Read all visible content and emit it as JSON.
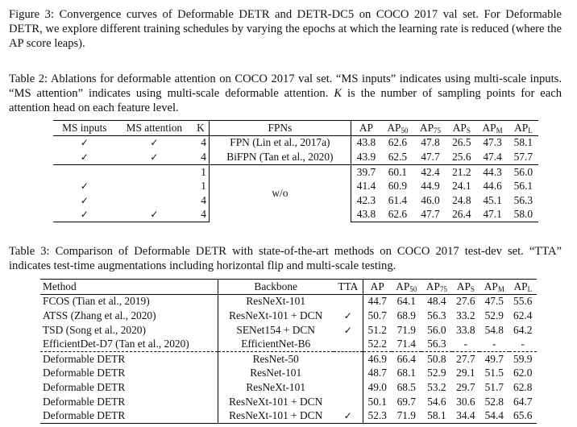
{
  "figure3_caption": "Figure 3: Convergence curves of Deformable DETR and DETR-DC5 on COCO 2017 val set. For Deformable DETR, we explore different training schedules by varying the epochs at which the learning rate is reduced (where the AP score leaps).",
  "table2": {
    "caption_prefix": "Table 2: Ablations for deformable attention on COCO 2017 val set. “MS inputs” indicates using multi-scale inputs. “MS attention” indicates using multi-scale deformable attention. ",
    "caption_k": "K",
    "caption_suffix": " is the number of sampling points for each attention head on each feature level.",
    "headers": {
      "ms_inputs": "MS inputs",
      "ms_attention": "MS attention",
      "k": "K",
      "fpns": "FPNs",
      "ap": "AP",
      "ap50": "AP",
      "ap50_sub": "50",
      "ap75": "AP",
      "ap75_sub": "75",
      "aps": "AP",
      "aps_sub": "S",
      "apm": "AP",
      "apm_sub": "M",
      "apl": "AP",
      "apl_sub": "L"
    },
    "check": "✓",
    "wo_label": "w/o",
    "rows": [
      {
        "ms_inputs": "✓",
        "ms_attention": "✓",
        "k": "4",
        "fpns": "FPN (Lin et al., 2017a)",
        "ap": "43.8",
        "ap50": "62.6",
        "ap75": "47.8",
        "aps": "26.5",
        "apm": "47.3",
        "apl": "58.1"
      },
      {
        "ms_inputs": "✓",
        "ms_attention": "✓",
        "k": "4",
        "fpns": "BiFPN (Tan et al., 2020)",
        "ap": "43.9",
        "ap50": "62.5",
        "ap75": "47.7",
        "aps": "25.6",
        "apm": "47.4",
        "apl": "57.7"
      },
      {
        "ms_inputs": "",
        "ms_attention": "",
        "k": "1",
        "ap": "39.7",
        "ap50": "60.1",
        "ap75": "42.4",
        "aps": "21.2",
        "apm": "44.3",
        "apl": "56.0"
      },
      {
        "ms_inputs": "✓",
        "ms_attention": "",
        "k": "1",
        "ap": "41.4",
        "ap50": "60.9",
        "ap75": "44.9",
        "aps": "24.1",
        "apm": "44.6",
        "apl": "56.1"
      },
      {
        "ms_inputs": "✓",
        "ms_attention": "",
        "k": "4",
        "ap": "42.3",
        "ap50": "61.4",
        "ap75": "46.0",
        "aps": "24.8",
        "apm": "45.1",
        "apl": "56.3"
      },
      {
        "ms_inputs": "✓",
        "ms_attention": "✓",
        "k": "4",
        "ap": "43.8",
        "ap50": "62.6",
        "ap75": "47.7",
        "aps": "26.4",
        "apm": "47.1",
        "apl": "58.0"
      }
    ]
  },
  "table3": {
    "caption": "Table 3: Comparison of Deformable DETR with state-of-the-art methods on COCO 2017 test-dev set. “TTA” indicates test-time augmentations including horizontal flip and multi-scale testing.",
    "headers": {
      "method": "Method",
      "backbone": "Backbone",
      "tta": "TTA",
      "ap": "AP",
      "ap50": "AP",
      "ap50_sub": "50",
      "ap75": "AP",
      "ap75_sub": "75",
      "aps": "AP",
      "aps_sub": "S",
      "apm": "AP",
      "apm_sub": "M",
      "apl": "AP",
      "apl_sub": "L"
    },
    "rows": [
      {
        "method": "FCOS (Tian et al., 2019)",
        "backbone": "ResNeXt-101",
        "tta": "",
        "ap": "44.7",
        "ap50": "64.1",
        "ap75": "48.4",
        "aps": "27.6",
        "apm": "47.5",
        "apl": "55.6"
      },
      {
        "method": "ATSS (Zhang et al., 2020)",
        "backbone": "ResNeXt-101 + DCN",
        "tta": "✓",
        "ap": "50.7",
        "ap50": "68.9",
        "ap75": "56.3",
        "aps": "33.2",
        "apm": "52.9",
        "apl": "62.4"
      },
      {
        "method": "TSD (Song et al., 2020)",
        "backbone": "SENet154 + DCN",
        "tta": "✓",
        "ap": "51.2",
        "ap50": "71.9",
        "ap75": "56.0",
        "aps": "33.8",
        "apm": "54.8",
        "apl": "64.2"
      },
      {
        "method": "EfficientDet-D7 (Tan et al., 2020)",
        "backbone": "EfficientNet-B6",
        "tta": "",
        "ap": "52.2",
        "ap50": "71.4",
        "ap75": "56.3",
        "aps": "-",
        "apm": "-",
        "apl": "-"
      },
      {
        "method": "Deformable DETR",
        "backbone": "ResNet-50",
        "tta": "",
        "ap": "46.9",
        "ap50": "66.4",
        "ap75": "50.8",
        "aps": "27.7",
        "apm": "49.7",
        "apl": "59.9"
      },
      {
        "method": "Deformable DETR",
        "backbone": "ResNet-101",
        "tta": "",
        "ap": "48.7",
        "ap50": "68.1",
        "ap75": "52.9",
        "aps": "29.1",
        "apm": "51.5",
        "apl": "62.0"
      },
      {
        "method": "Deformable DETR",
        "backbone": "ResNeXt-101",
        "tta": "",
        "ap": "49.0",
        "ap50": "68.5",
        "ap75": "53.2",
        "aps": "29.7",
        "apm": "51.7",
        "apl": "62.8"
      },
      {
        "method": "Deformable DETR",
        "backbone": "ResNeXt-101 + DCN",
        "tta": "",
        "ap": "50.1",
        "ap50": "69.7",
        "ap75": "54.6",
        "aps": "30.6",
        "apm": "52.8",
        "apl": "64.7"
      },
      {
        "method": "Deformable DETR",
        "backbone": "ResNeXt-101 + DCN",
        "tta": "✓",
        "ap": "52.3",
        "ap50": "71.9",
        "ap75": "58.1",
        "aps": "34.4",
        "apm": "54.4",
        "apl": "65.6"
      }
    ]
  }
}
